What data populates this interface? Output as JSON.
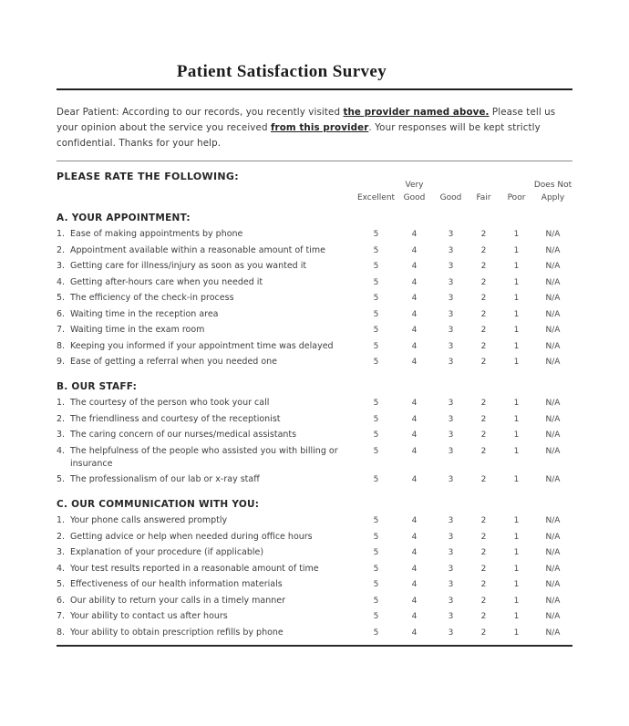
{
  "doc": {
    "title": "Patient Satisfaction Survey",
    "intro": {
      "part1": "Dear Patient: According to our records, you recently visited ",
      "bold1": "the provider named above.",
      "part2": " Please tell us your opinion about the service you received ",
      "bold2": "from this provider",
      "part3": ". Your responses will be kept strictly confidential. Thanks for your help."
    },
    "rate_heading": "PLEASE RATE THE FOLLOWING:",
    "column_headers": [
      {
        "top": "",
        "bottom": "Excellent"
      },
      {
        "top": "Very",
        "bottom": "Good"
      },
      {
        "top": "",
        "bottom": "Good"
      },
      {
        "top": "",
        "bottom": "Fair"
      },
      {
        "top": "",
        "bottom": "Poor"
      },
      {
        "top": "Does Not",
        "bottom": "Apply"
      }
    ],
    "rating_scale": [
      "5",
      "4",
      "3",
      "2",
      "1",
      "N/A"
    ],
    "sections": [
      {
        "heading": "A. YOUR APPOINTMENT:",
        "items": [
          "Ease of making appointments by phone",
          "Appointment available within a reasonable amount of time",
          "Getting care for illness/injury as soon as you wanted it",
          "Getting after-hours care when you needed it",
          "The efficiency of the check-in process",
          "Waiting time in the reception area",
          "Waiting time in the exam room",
          "Keeping you informed if your appointment time was delayed",
          "Ease of getting a referral when you needed one"
        ]
      },
      {
        "heading": "B. OUR STAFF:",
        "items": [
          "The courtesy of the person who took your call",
          "The friendliness and courtesy of the receptionist",
          "The caring concern of our nurses/medical assistants",
          "The helpfulness of the people who assisted you with billing or insurance",
          "The professionalism of our lab or x-ray staff"
        ]
      },
      {
        "heading": "C. OUR COMMUNICATION WITH YOU:",
        "items": [
          "Your phone calls answered promptly",
          "Getting advice or help when needed during office hours",
          "Explanation of your procedure (if applicable)",
          "Your test results reported in a reasonable amount of time",
          "Effectiveness of our health information materials",
          "Our ability to return your calls in a timely manner",
          "Your ability to contact us after hours",
          "Your ability to obtain prescription refills by phone"
        ]
      }
    ]
  }
}
